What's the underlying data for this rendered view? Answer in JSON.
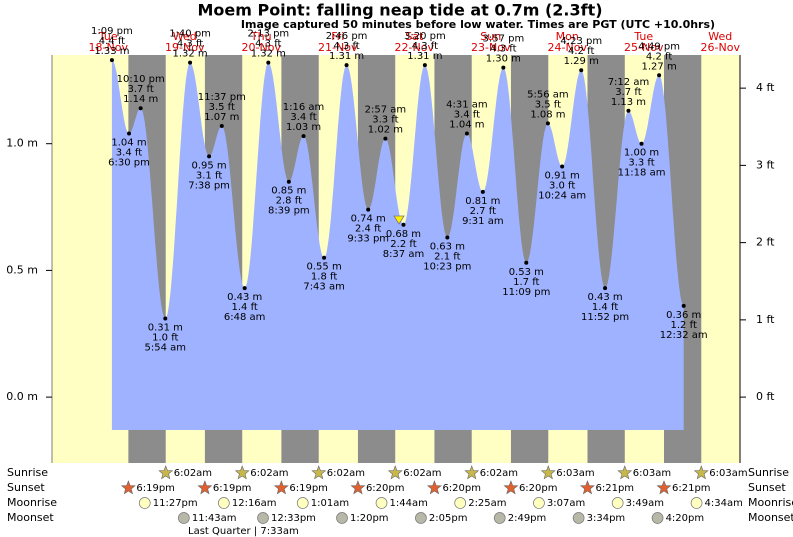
{
  "chart_data": {
    "type": "tide",
    "title": "Moem Point: falling  neap tide at 0.7m (2.3ft)",
    "subtitle": "Image captured 50 minutes before low water. Times are PGT (UTC +10.0hrs)",
    "ylim": [
      -0.26,
      1.35
    ],
    "yticks": [
      {
        "value": 0,
        "label": "0.0 m"
      },
      {
        "value": 0.5,
        "label": "0.5 m"
      },
      {
        "value": 1.0,
        "label": "1.0 m"
      }
    ],
    "y2lim": [
      -0.853,
      4.429
    ],
    "y2ticks": [
      {
        "value": 0,
        "label": "0 ft"
      },
      {
        "value": 1,
        "label": "1 ft"
      },
      {
        "value": 2,
        "label": "2 ft"
      },
      {
        "value": 3,
        "label": "3 ft"
      },
      {
        "value": 4,
        "label": "4 ft"
      }
    ],
    "colors": {
      "water": "#9fb2ff",
      "day": "#ffffc4",
      "night": "#8c8c8c",
      "date": "#dd0000"
    },
    "days": [
      {
        "weekday": "Tue",
        "date": "18-Nov",
        "extremes": [
          {
            "time": "1:09 pm",
            "value": 1.33,
            "value_label": "1.33 m",
            "ft_label": "4.4 ft"
          },
          {
            "time": "6:30 pm",
            "value": 1.04,
            "value_label": "1.04 m",
            "ft_label": "3.4 ft"
          },
          {
            "time": "10:10 pm",
            "value": 1.14,
            "value_label": "1.14 m",
            "ft_label": "3.7 ft"
          }
        ]
      },
      {
        "weekday": "Wed",
        "date": "19-Nov",
        "extremes": [
          {
            "time": "5:54 am",
            "value": 0.31,
            "value_label": "0.31 m",
            "ft_label": "1.0 ft"
          },
          {
            "time": "1:40 pm",
            "value": 1.32,
            "value_label": "1.32 m",
            "ft_label": "4.3 ft"
          },
          {
            "time": "7:38 pm",
            "value": 0.95,
            "value_label": "0.95 m",
            "ft_label": "3.1 ft"
          },
          {
            "time": "11:37 pm",
            "value": 1.07,
            "value_label": "1.07 m",
            "ft_label": "3.5 ft"
          }
        ]
      },
      {
        "weekday": "Thu",
        "date": "20-Nov",
        "extremes": [
          {
            "time": "6:48 am",
            "value": 0.43,
            "value_label": "0.43 m",
            "ft_label": "1.4 ft"
          },
          {
            "time": "2:13 pm",
            "value": 1.32,
            "value_label": "1.32 m",
            "ft_label": "4.3 ft"
          },
          {
            "time": "8:39 pm",
            "value": 0.85,
            "value_label": "0.85 m",
            "ft_label": "2.8 ft"
          }
        ]
      },
      {
        "weekday": "Fri",
        "date": "21-Nov",
        "extremes": [
          {
            "time": "1:16 am",
            "value": 1.03,
            "value_label": "1.03 m",
            "ft_label": "3.4 ft"
          },
          {
            "time": "7:43 am",
            "value": 0.55,
            "value_label": "0.55 m",
            "ft_label": "1.8 ft"
          },
          {
            "time": "2:46 pm",
            "value": 1.31,
            "value_label": "1.31 m",
            "ft_label": "4.3 ft"
          },
          {
            "time": "9:33 pm",
            "value": 0.74,
            "value_label": "0.74 m",
            "ft_label": "2.4 ft"
          }
        ]
      },
      {
        "weekday": "Sat",
        "date": "22-Nov",
        "extremes": [
          {
            "time": "2:57 am",
            "value": 1.02,
            "value_label": "1.02 m",
            "ft_label": "3.3 ft"
          },
          {
            "time": "8:37 am",
            "value": 0.68,
            "value_label": "0.68 m",
            "ft_label": "2.2 ft"
          },
          {
            "time": "3:20 pm",
            "value": 1.31,
            "value_label": "1.31 m",
            "ft_label": "4.3 ft"
          },
          {
            "time": "10:23 pm",
            "value": 0.63,
            "value_label": "0.63 m",
            "ft_label": "2.1 ft"
          }
        ]
      },
      {
        "weekday": "Sun",
        "date": "23-Nov",
        "extremes": [
          {
            "time": "4:31 am",
            "value": 1.04,
            "value_label": "1.04 m",
            "ft_label": "3.4 ft"
          },
          {
            "time": "9:31 am",
            "value": 0.81,
            "value_label": "0.81 m",
            "ft_label": "2.7 ft"
          },
          {
            "time": "3:57 pm",
            "value": 1.3,
            "value_label": "1.30 m",
            "ft_label": "4.3 ft"
          },
          {
            "time": "11:09 pm",
            "value": 0.53,
            "value_label": "0.53 m",
            "ft_label": "1.7 ft"
          }
        ]
      },
      {
        "weekday": "Mon",
        "date": "24-Nov",
        "extremes": [
          {
            "time": "5:56 am",
            "value": 1.08,
            "value_label": "1.08 m",
            "ft_label": "3.5 ft"
          },
          {
            "time": "10:24 am",
            "value": 0.91,
            "value_label": "0.91 m",
            "ft_label": "3.0 ft"
          },
          {
            "time": "4:23 pm",
            "value": 1.29,
            "value_label": "1.29 m",
            "ft_label": "4.2 ft"
          },
          {
            "time": "11:52 pm",
            "value": 0.43,
            "value_label": "0.43 m",
            "ft_label": "1.4 ft"
          }
        ]
      },
      {
        "weekday": "Tue",
        "date": "25-Nov",
        "extremes": [
          {
            "time": "7:12 am",
            "value": 1.13,
            "value_label": "1.13 m",
            "ft_label": "3.7 ft"
          },
          {
            "time": "11:18 am",
            "value": 1.0,
            "value_label": "1.00 m",
            "ft_label": "3.3 ft"
          },
          {
            "time": "4:49 pm",
            "value": 1.27,
            "value_label": "1.27 m",
            "ft_label": "4.2 ft"
          }
        ]
      },
      {
        "weekday": "Wed",
        "date": "26-Nov",
        "extremes": [
          {
            "time": "12:32 am",
            "value": 0.36,
            "value_label": "0.36 m",
            "ft_label": "1.2 ft"
          }
        ]
      }
    ],
    "rows": [
      {
        "name": "Sunrise",
        "kind": "sunrise",
        "times": [
          null,
          "6:02am",
          "6:02am",
          "6:02am",
          "6:02am",
          "6:02am",
          "6:03am",
          "6:03am",
          "6:03am"
        ]
      },
      {
        "name": "Sunset",
        "kind": "sunset",
        "times": [
          "6:19pm",
          "6:19pm",
          "6:19pm",
          "6:20pm",
          "6:20pm",
          "6:20pm",
          "6:21pm",
          "6:21pm",
          null
        ]
      },
      {
        "name": "Moonrise",
        "kind": "moonrise",
        "times": [
          "11:27pm",
          null,
          "12:16am",
          "1:01am",
          "1:44am",
          "2:25am",
          "3:07am",
          "3:49am",
          "4:34am"
        ]
      },
      {
        "name": "Moonset",
        "kind": "moonset",
        "times": [
          null,
          "11:43am",
          "12:33pm",
          "1:20pm",
          "2:05pm",
          "2:49pm",
          "3:34pm",
          "4:20pm",
          null
        ]
      }
    ],
    "moon_phase": "Last Quarter | 7:33am"
  }
}
